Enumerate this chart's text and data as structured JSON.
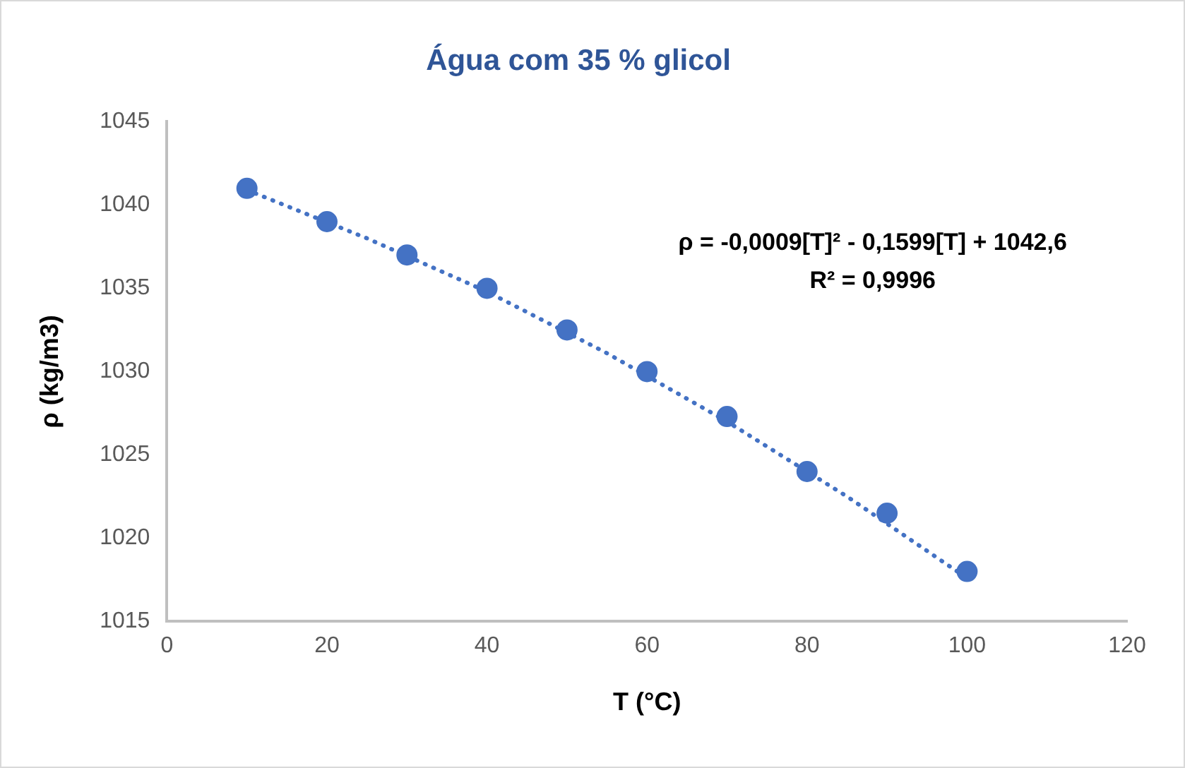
{
  "chart_data": {
    "type": "scatter",
    "title": "Água com 35 % glicol",
    "xlabel": "T (°C)",
    "ylabel": "ρ (kg/m3)",
    "xlim": [
      0,
      120
    ],
    "xticks": [
      0,
      20,
      40,
      60,
      80,
      100,
      120
    ],
    "ylim": [
      1015,
      1045
    ],
    "yticks": [
      1015,
      1020,
      1025,
      1030,
      1035,
      1040,
      1045
    ],
    "grid": false,
    "legend": false,
    "marker": "circle",
    "series": [
      {
        "type": "scatter",
        "color": "#4472c4",
        "x": [
          10,
          20,
          30,
          40,
          50,
          60,
          70,
          80,
          90,
          100
        ],
        "values": [
          1041,
          1039,
          1037,
          1035,
          1032.5,
          1030,
          1027.3,
          1024,
          1021.5,
          1018
        ]
      },
      {
        "type": "line",
        "color": "#4472c4",
        "line_style": "dotted",
        "marker": "none",
        "x": [
          10,
          25,
          40,
          55,
          70,
          85,
          100
        ],
        "values": [
          1040.9,
          1038.0,
          1034.8,
          1031.1,
          1027.0,
          1022.5,
          1017.6
        ]
      }
    ],
    "annotations": [
      "ρ = -0,0009[T]² - 0,1599[T] + 1042,6",
      "R² = 0,9996"
    ]
  }
}
